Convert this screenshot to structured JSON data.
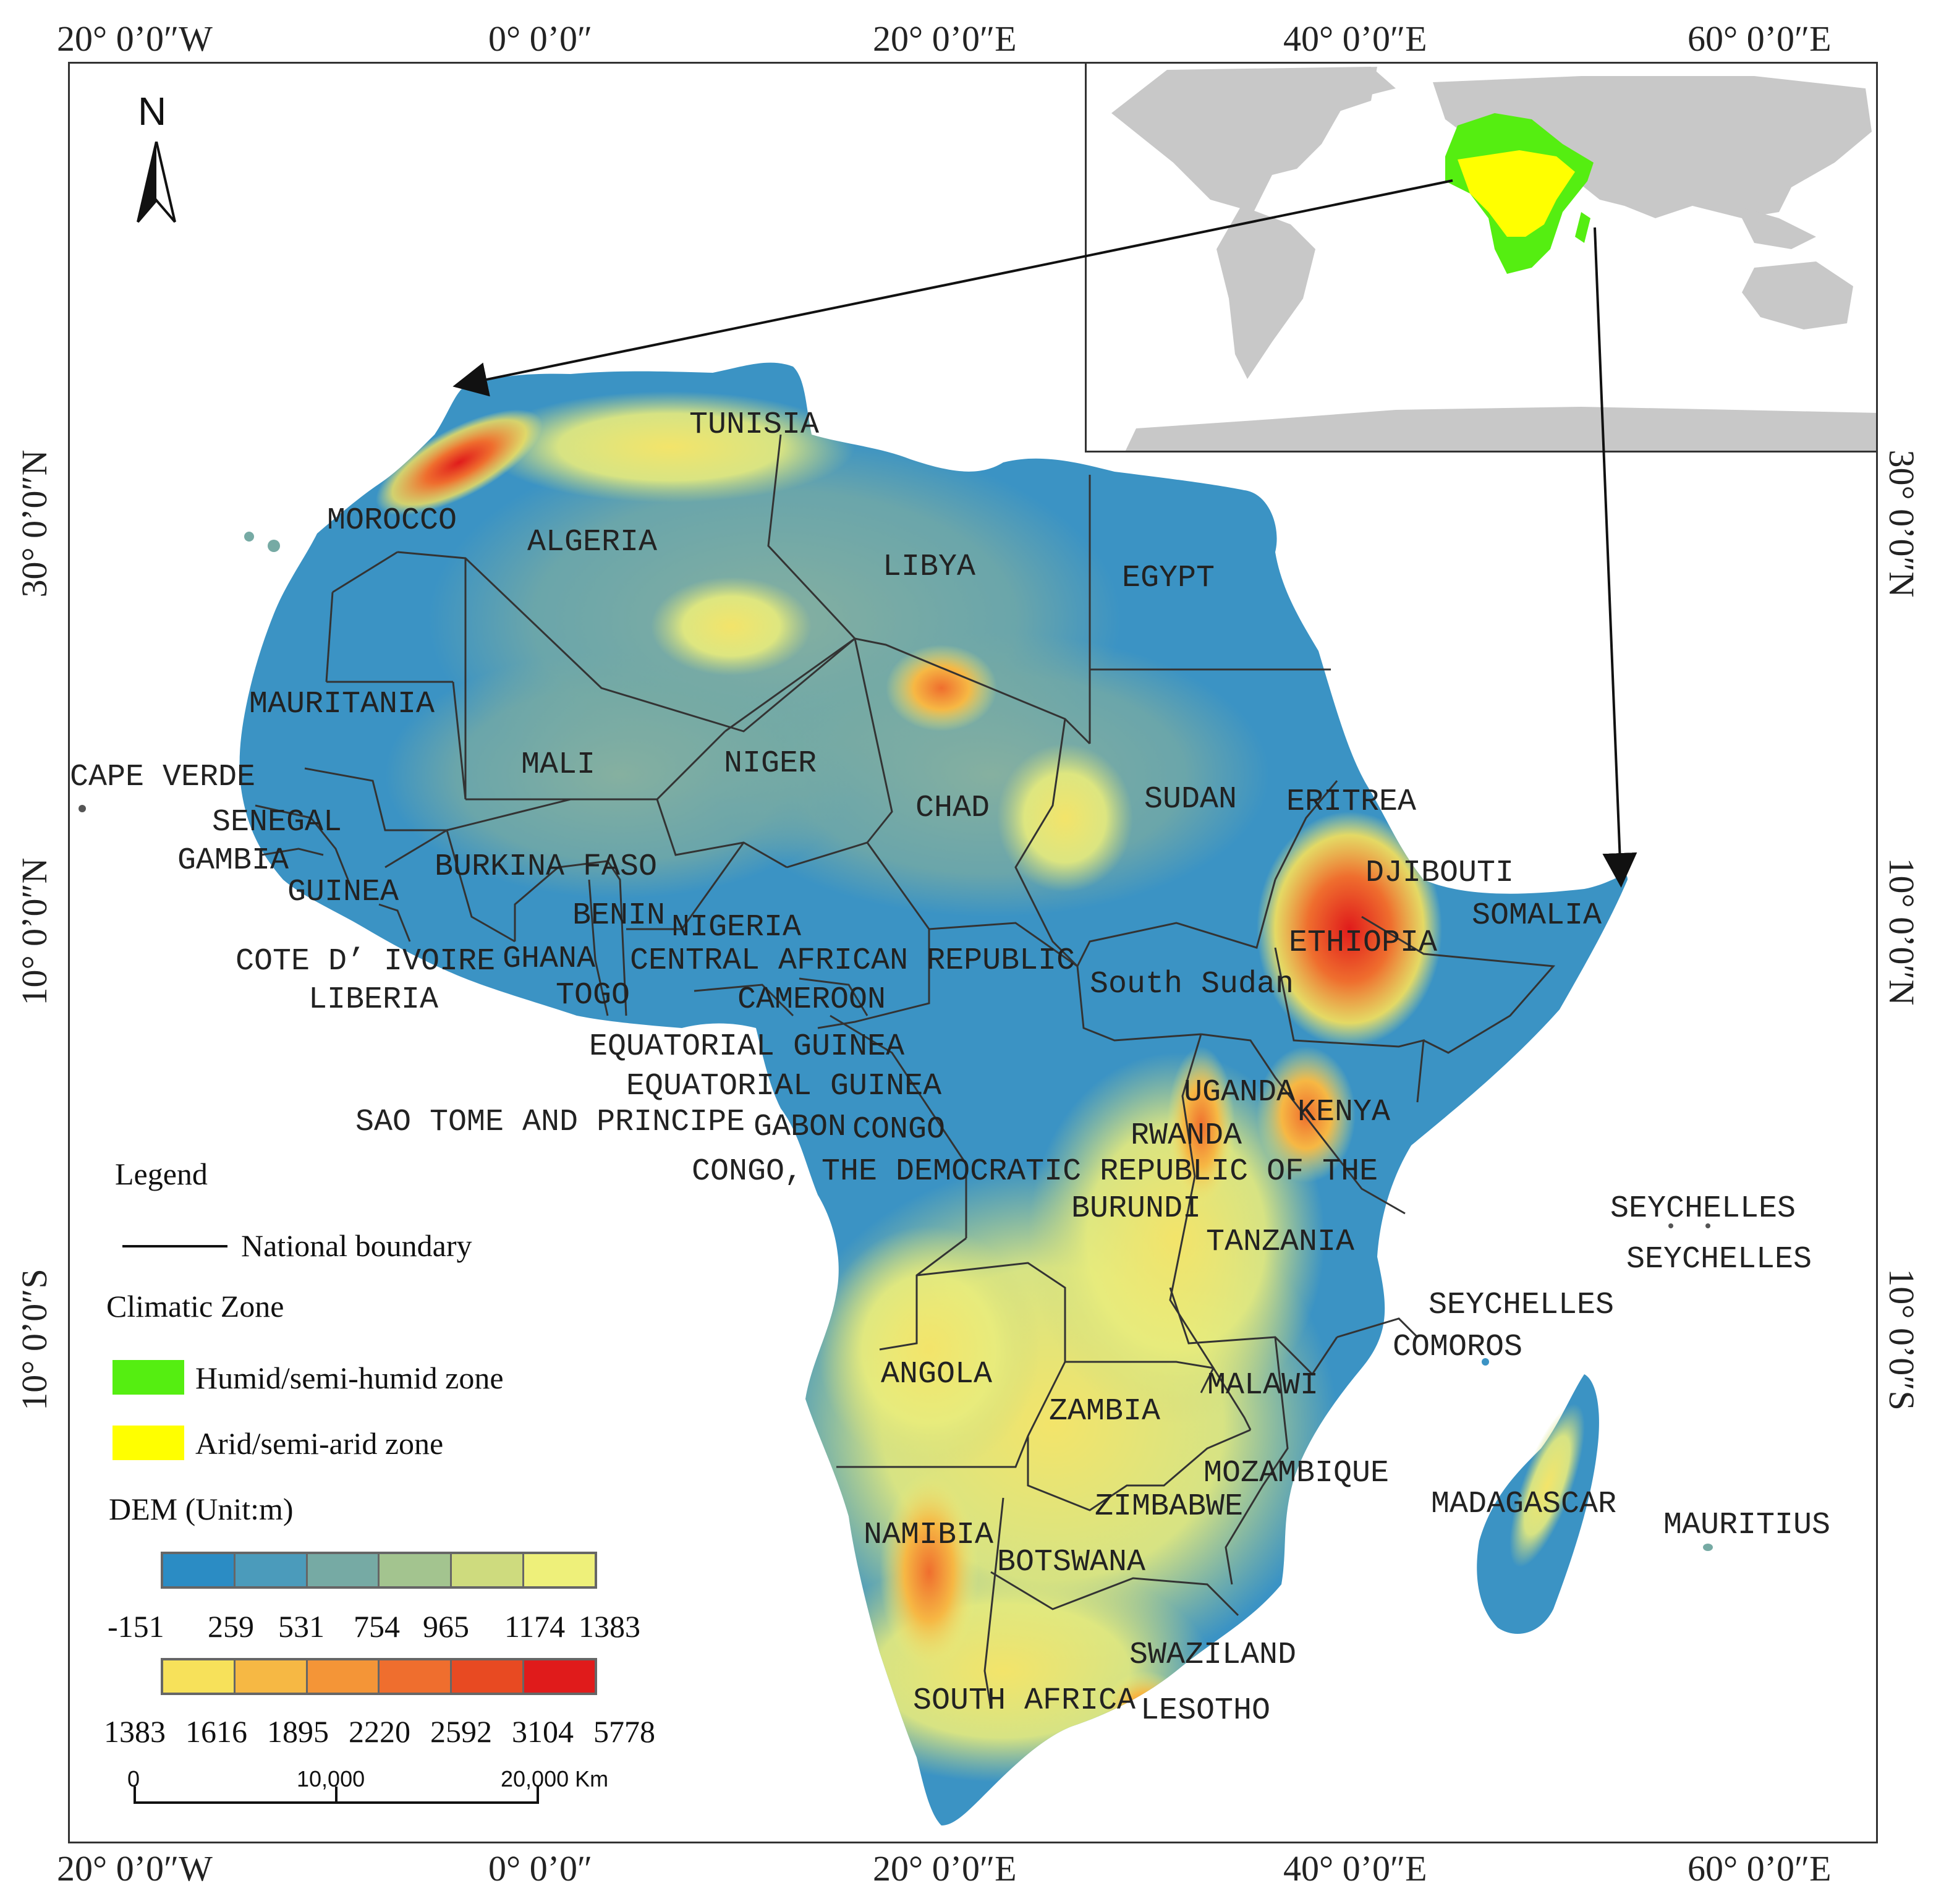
{
  "graticule": {
    "top": [
      "20° 0’0″W",
      "0° 0’0″",
      "20° 0’0″E",
      "40° 0’0″E",
      "60° 0’0″E"
    ],
    "bottom": [
      "20° 0’0″W",
      "0° 0’0″",
      "20° 0’0″E",
      "40° 0’0″E",
      "60° 0’0″E"
    ],
    "left": [
      "30° 0’0″N",
      "10° 0’0″N",
      "10° 0’0″S"
    ],
    "right": [
      "30° 0’0″N",
      "10° 0’0″N",
      "10° 0’0″S"
    ]
  },
  "north_arrow": {
    "label": "N"
  },
  "countries": [
    "TUNISIA",
    "MOROCCO",
    "ALGERIA",
    "LIBYA",
    "EGYPT",
    "MAURITANIA",
    "MALI",
    "NIGER",
    "CAPE VERDE",
    "CHAD",
    "SUDAN",
    "ERITREA",
    "SENEGAL",
    "GAMBIA",
    "BURKINA FASO",
    "DJIBOUTI",
    "GUINEA",
    "BENIN",
    "NIGERIA",
    "SOMALIA",
    "ETHIOPIA",
    "COTE D’ IVOIRE",
    "GHANA",
    "CENTRAL AFRICAN REPUBLIC",
    "LIBERIA",
    "TOGO",
    "CAMEROON",
    "South Sudan",
    "EQUATORIAL GUINEA",
    "EQUATORIAL GUINEA",
    "UGANDA",
    "KENYA",
    "SAO TOME AND PRINCIPE",
    "GABON",
    "CONGO",
    "RWANDA",
    "CONGO, THE DEMOCRATIC REPUBLIC OF THE",
    "BURUNDI",
    "SEYCHELLES",
    "SEYCHELLES",
    "TANZANIA",
    "SEYCHELLES",
    "COMOROS",
    "ANGOLA",
    "MALAWI",
    "ZAMBIA",
    "MOZAMBIQUE",
    "ZIMBABWE",
    "MADAGASCAR",
    "MAURITIUS",
    "NAMIBIA",
    "BOTSWANA",
    "SWAZILAND",
    "SOUTH AFRICA",
    "LESOTHO"
  ],
  "legend": {
    "title": "Legend",
    "boundary_label": "National boundary",
    "climatic_title": "Climatic Zone",
    "humid_label": "Humid/semi-humid  zone",
    "arid_label": "Arid/semi-arid zone",
    "dem_title": "DEM (Unit:m)",
    "humid_color": "#55ee11",
    "arid_color": "#ffff00",
    "ramp1_colors": [
      "#2b8cc4",
      "#4b9bbb",
      "#76aaa4",
      "#a3c48f",
      "#cedb7e",
      "#eef07a"
    ],
    "ramp1_labels": [
      "-151",
      "259",
      "531",
      "754",
      "965",
      "1174",
      "1383"
    ],
    "ramp2_colors": [
      "#f7e15a",
      "#f6b844",
      "#f49537",
      "#ef6e2e",
      "#e84a22",
      "#e01b1b"
    ],
    "ramp2_labels": [
      "1383",
      "1616",
      "1895",
      "2220",
      "2592",
      "3104",
      "5778"
    ]
  },
  "scale_bar": {
    "labels": [
      "0",
      "10,000",
      "20,000 Km"
    ]
  },
  "inset": {
    "land_color": "#c8c8c8",
    "humid_color": "#55ee11",
    "arid_color": "#ffff00"
  }
}
